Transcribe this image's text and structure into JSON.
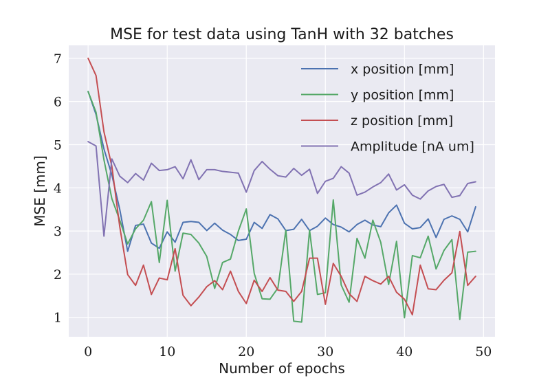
{
  "chart_data": {
    "type": "line",
    "title": "MSE for test data using TanH with 32 batches",
    "xlabel": "Number of epochs",
    "ylabel": "MSE [mm]",
    "xlim": [
      -2.45,
      51.45
    ],
    "ylim": [
      0.55,
      7.3
    ],
    "xticks": [
      0,
      10,
      20,
      30,
      40,
      50
    ],
    "yticks": [
      1,
      2,
      3,
      4,
      5,
      6,
      7
    ],
    "grid": true,
    "legend_position": "top-right",
    "x": [
      0,
      1,
      2,
      3,
      4,
      5,
      6,
      7,
      8,
      9,
      10,
      11,
      12,
      13,
      14,
      15,
      16,
      17,
      18,
      19,
      20,
      21,
      22,
      23,
      24,
      25,
      26,
      27,
      28,
      29,
      30,
      31,
      32,
      33,
      34,
      35,
      36,
      37,
      38,
      39,
      40,
      41,
      42,
      43,
      44,
      45,
      46,
      47,
      48,
      49
    ],
    "series": [
      {
        "name": "x position [mm]",
        "color": "#4c72b0",
        "values": [
          6.23,
          5.7,
          4.9,
          4.3,
          3.5,
          2.53,
          3.13,
          3.16,
          2.72,
          2.6,
          2.98,
          2.74,
          3.2,
          3.22,
          3.2,
          3.01,
          3.18,
          3.02,
          2.92,
          2.78,
          2.81,
          3.2,
          3.06,
          3.38,
          3.28,
          3.01,
          3.04,
          3.27,
          3.01,
          3.11,
          3.3,
          3.15,
          3.09,
          2.98,
          3.15,
          3.25,
          3.14,
          3.1,
          3.42,
          3.6,
          3.18,
          3.05,
          3.08,
          3.28,
          2.85,
          3.27,
          3.35,
          3.27,
          2.98,
          3.56
        ]
      },
      {
        "name": "y position [mm]",
        "color": "#55a868",
        "values": [
          6.23,
          5.75,
          4.65,
          3.75,
          3.25,
          2.7,
          3.05,
          3.25,
          3.68,
          2.27,
          3.71,
          2.07,
          2.95,
          2.92,
          2.72,
          2.41,
          1.67,
          2.27,
          2.35,
          3.0,
          3.51,
          2.02,
          1.43,
          1.42,
          1.68,
          3.02,
          0.91,
          0.89,
          3.02,
          1.53,
          1.57,
          3.72,
          1.75,
          1.35,
          2.83,
          2.37,
          3.25,
          2.74,
          1.76,
          2.76,
          0.99,
          2.43,
          2.38,
          2.88,
          2.12,
          2.55,
          2.8,
          0.95,
          2.51,
          2.53
        ]
      },
      {
        "name": "z position [mm]",
        "color": "#c44e52",
        "values": [
          7.0,
          6.6,
          5.3,
          4.5,
          3.1,
          1.99,
          1.74,
          2.21,
          1.53,
          1.91,
          1.87,
          2.59,
          1.51,
          1.27,
          1.47,
          1.71,
          1.85,
          1.64,
          2.07,
          1.6,
          1.32,
          1.86,
          1.6,
          1.92,
          1.63,
          1.6,
          1.37,
          1.6,
          2.37,
          2.37,
          1.3,
          2.25,
          1.95,
          1.55,
          1.37,
          1.95,
          1.85,
          1.77,
          1.95,
          1.58,
          1.42,
          1.06,
          2.21,
          1.66,
          1.64,
          1.86,
          2.03,
          2.99,
          1.74,
          1.95
        ]
      },
      {
        "name": "Amplitude [nA um]",
        "color": "#8172b2",
        "values": [
          5.07,
          4.97,
          2.88,
          4.67,
          4.27,
          4.12,
          4.33,
          4.18,
          4.57,
          4.4,
          4.42,
          4.49,
          4.21,
          4.65,
          4.19,
          4.42,
          4.42,
          4.38,
          4.36,
          4.34,
          3.9,
          4.4,
          4.61,
          4.43,
          4.28,
          4.25,
          4.45,
          4.29,
          4.43,
          3.87,
          4.15,
          4.22,
          4.49,
          4.34,
          3.83,
          3.9,
          4.02,
          4.12,
          4.32,
          3.95,
          4.07,
          3.83,
          3.74,
          3.93,
          4.03,
          4.08,
          3.78,
          3.82,
          4.1,
          4.14
        ]
      }
    ]
  }
}
